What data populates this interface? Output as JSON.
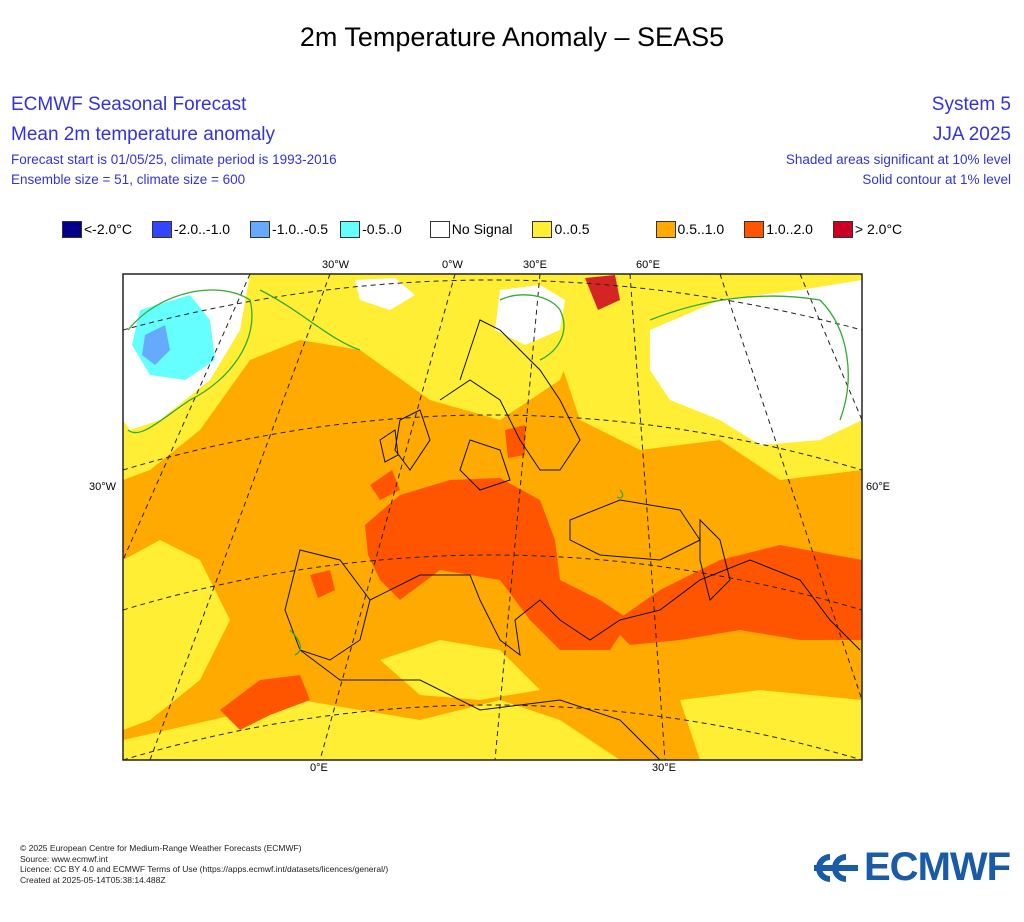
{
  "title": "2m Temperature Anomaly – SEAS5",
  "header": {
    "left_line1": "ECMWF Seasonal Forecast",
    "left_line2": "Mean 2m temperature anomaly",
    "left_line3": "Forecast start is 01/05/25, climate period is 1993-2016",
    "left_line4": "Ensemble size = 51, climate size = 600",
    "right_line1": "System 5",
    "right_line2": "JJA 2025",
    "right_line3": "Shaded areas significant at 10% level",
    "right_line4": "Solid contour at 1% level"
  },
  "legend": [
    {
      "label": "<-2.0°C",
      "color": "#00008b"
    },
    {
      "label": "-2.0..-1.0",
      "color": "#3344ff"
    },
    {
      "label": "-1.0..-0.5",
      "color": "#66aaff"
    },
    {
      "label": "-0.5..0",
      "color": "#66ffff"
    },
    {
      "label": "No Signal",
      "color": "#ffffff"
    },
    {
      "label": "0..0.5",
      "color": "#ffee33"
    },
    {
      "label": "0.5..1.0",
      "color": "#ffaa00"
    },
    {
      "label": "1.0..2.0",
      "color": "#ff5500"
    },
    {
      "label": "> 2.0°C",
      "color": "#cc0022"
    }
  ],
  "map": {
    "lon_labels_top": [
      "30°W",
      "0°W",
      "30°E",
      "60°E"
    ],
    "lon_labels_bottom": [
      "0°E",
      "30°E"
    ],
    "lat_label_left": "30°W",
    "lat_label_right": "60°E"
  },
  "footer": {
    "line1": "© 2025 European Centre for Medium-Range Weather Forecasts (ECMWF)",
    "line2": "Source: www.ecmwf.int",
    "line3": "Licence: CC BY 4.0 and ECMWF Terms of Use (https://apps.ecmwf.int/datasets/licences/general/)",
    "line4": "Created at 2025-05-14T05:38:14.488Z"
  },
  "logo": {
    "text": "ECMWF"
  }
}
